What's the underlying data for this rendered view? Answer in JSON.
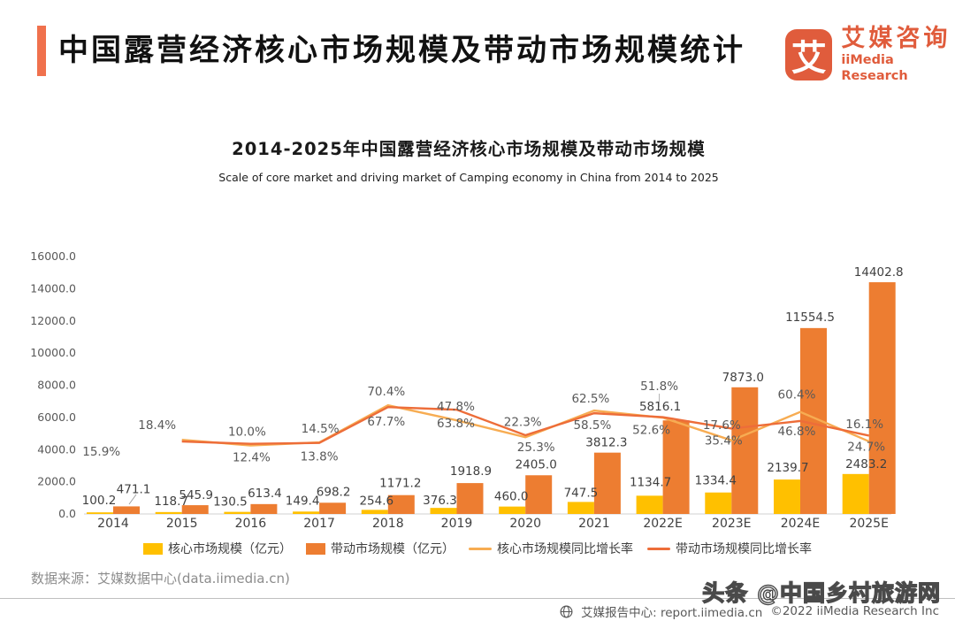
{
  "header": {
    "title": "中国露营经济核心市场规模及带动市场规模统计",
    "logo_glyph": "艾",
    "logo_cn": "艾媒咨询",
    "logo_en": "iiMedia Research"
  },
  "chart_data": {
    "type": "bar",
    "subtype": "grouped-bars-with-growth-lines",
    "title": "2014-2025年中国露营经济核心市场规模及带动市场规模",
    "subtitle": "Scale of core market and driving market of Camping economy in China from 2014 to 2025",
    "categories": [
      "2014",
      "2015",
      "2016",
      "2017",
      "2018",
      "2019",
      "2020",
      "2021",
      "2022E",
      "2023E",
      "2024E",
      "2025E"
    ],
    "series": [
      {
        "name": "核心市场规模（亿元）",
        "type": "bar",
        "color": "#FFC000",
        "values": [
          100.2,
          118.7,
          130.5,
          149.4,
          254.6,
          376.3,
          460.0,
          747.5,
          1134.7,
          1334.4,
          2139.7,
          2483.2
        ]
      },
      {
        "name": "带动市场规模（亿元）",
        "type": "bar",
        "color": "#ED7D31",
        "values": [
          471.1,
          545.9,
          613.4,
          698.2,
          1171.2,
          1918.9,
          2405.0,
          3812.3,
          5816.1,
          7873.0,
          11554.5,
          14402.8
        ]
      },
      {
        "name": "核心市场规模同比增长率",
        "type": "line",
        "color": "#F7AC52",
        "unit": "%",
        "values": [
          null,
          18.4,
          10.0,
          14.5,
          70.4,
          47.8,
          22.3,
          62.5,
          51.8,
          17.6,
          60.4,
          16.1
        ]
      },
      {
        "name": "带动市场规模同比增长率",
        "type": "line",
        "color": "#ED6D39",
        "unit": "%",
        "values": [
          null,
          15.9,
          12.4,
          13.8,
          67.7,
          63.8,
          25.3,
          58.5,
          52.6,
          35.4,
          46.8,
          24.7
        ]
      }
    ],
    "y_axis": {
      "min": 0,
      "max": 16000,
      "step": 2000,
      "tick_labels": [
        "0.0",
        "2000.0",
        "4000.0",
        "6000.0",
        "8000.0",
        "10000.0",
        "12000.0",
        "14000.0",
        "16000.0"
      ]
    },
    "grid": false,
    "legend_position": "bottom"
  },
  "footer": {
    "source": "数据来源：艾媒数据中心(data.iimedia.cn)",
    "watermark": "头条 @中国乡村旅游网",
    "report": "艾媒报告中心: report.iimedia.cn",
    "copyright": "©2022  iiMedia Research  Inc"
  }
}
